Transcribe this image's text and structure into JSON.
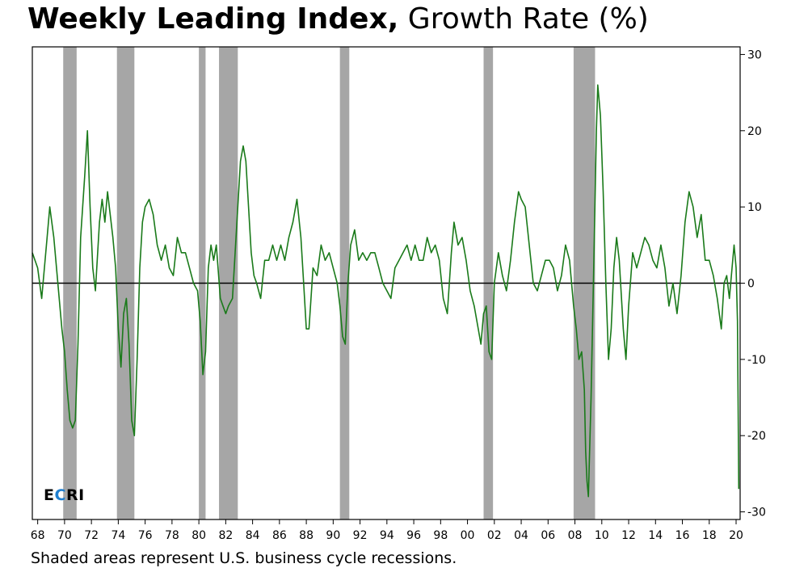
{
  "title": {
    "bold": "Weekly Leading Index,",
    "light": "Growth Rate (%)"
  },
  "footnote": "Shaded areas represent U.S. business cycle recessions.",
  "logo": {
    "e": "E",
    "c": "C",
    "ri": "RI"
  },
  "colors": {
    "line": "#1a7a1a",
    "recession": "#a6a6a6",
    "zero_line": "#000000",
    "logo_accent": "#1f7fd0"
  },
  "chart_data": {
    "type": "line",
    "title": "Weekly Leading Index, Growth Rate (%)",
    "ylim": [
      -31,
      31
    ],
    "xlim": [
      1967.6,
      2020.3
    ],
    "y_ticks": [
      30,
      20,
      10,
      0,
      -10,
      -20,
      -30
    ],
    "y_tick_labels": [
      "30",
      "20",
      "10",
      "0",
      "-10",
      "-20",
      "-30"
    ],
    "y_axis_side": "right",
    "x_ticks": [
      1968,
      1970,
      1972,
      1974,
      1976,
      1978,
      1980,
      1982,
      1984,
      1986,
      1988,
      1990,
      1992,
      1994,
      1996,
      1998,
      2000,
      2002,
      2004,
      2006,
      2008,
      2010,
      2012,
      2014,
      2016,
      2018,
      2020
    ],
    "x_tick_labels": [
      "68",
      "70",
      "72",
      "74",
      "76",
      "78",
      "80",
      "82",
      "84",
      "86",
      "88",
      "90",
      "92",
      "94",
      "96",
      "98",
      "00",
      "02",
      "04",
      "06",
      "08",
      "10",
      "12",
      "14",
      "16",
      "18",
      "20"
    ],
    "grid": false,
    "zero_line": true,
    "recessions": [
      [
        1969.9,
        1970.9
      ],
      [
        1973.9,
        1975.2
      ],
      [
        1980.0,
        1980.5
      ],
      [
        1981.5,
        1982.9
      ],
      [
        1990.5,
        1991.2
      ],
      [
        2001.2,
        2001.9
      ],
      [
        2007.9,
        2009.5
      ]
    ],
    "series": [
      {
        "points": [
          [
            1967.6,
            4
          ],
          [
            1968.0,
            2
          ],
          [
            1968.3,
            -2
          ],
          [
            1968.7,
            6
          ],
          [
            1968.9,
            10
          ],
          [
            1969.2,
            6
          ],
          [
            1969.5,
            0
          ],
          [
            1969.8,
            -6
          ],
          [
            1970.0,
            -9
          ],
          [
            1970.2,
            -14
          ],
          [
            1970.4,
            -18
          ],
          [
            1970.6,
            -19
          ],
          [
            1970.8,
            -18
          ],
          [
            1971.0,
            -8
          ],
          [
            1971.2,
            6
          ],
          [
            1971.5,
            14
          ],
          [
            1971.7,
            20
          ],
          [
            1971.9,
            10
          ],
          [
            1972.1,
            2
          ],
          [
            1972.3,
            -1
          ],
          [
            1972.6,
            8
          ],
          [
            1972.8,
            11
          ],
          [
            1973.0,
            8
          ],
          [
            1973.2,
            12
          ],
          [
            1973.4,
            9
          ],
          [
            1973.6,
            6
          ],
          [
            1973.8,
            2
          ],
          [
            1974.0,
            -6
          ],
          [
            1974.2,
            -11
          ],
          [
            1974.4,
            -4
          ],
          [
            1974.6,
            -2
          ],
          [
            1974.8,
            -8
          ],
          [
            1975.0,
            -18
          ],
          [
            1975.2,
            -20
          ],
          [
            1975.4,
            -10
          ],
          [
            1975.6,
            2
          ],
          [
            1975.8,
            8
          ],
          [
            1976.0,
            10
          ],
          [
            1976.3,
            11
          ],
          [
            1976.6,
            9
          ],
          [
            1976.9,
            5
          ],
          [
            1977.2,
            3
          ],
          [
            1977.5,
            5
          ],
          [
            1977.8,
            2
          ],
          [
            1978.1,
            1
          ],
          [
            1978.4,
            6
          ],
          [
            1978.7,
            4
          ],
          [
            1979.0,
            4
          ],
          [
            1979.3,
            2
          ],
          [
            1979.6,
            0
          ],
          [
            1979.9,
            -1
          ],
          [
            1980.1,
            -5
          ],
          [
            1980.3,
            -12
          ],
          [
            1980.5,
            -9
          ],
          [
            1980.7,
            2
          ],
          [
            1980.9,
            5
          ],
          [
            1981.1,
            3
          ],
          [
            1981.3,
            5
          ],
          [
            1981.6,
            -2
          ],
          [
            1981.8,
            -3
          ],
          [
            1982.0,
            -4
          ],
          [
            1982.2,
            -3
          ],
          [
            1982.5,
            -2
          ],
          [
            1982.7,
            4
          ],
          [
            1982.9,
            10
          ],
          [
            1983.1,
            16
          ],
          [
            1983.3,
            18
          ],
          [
            1983.5,
            16
          ],
          [
            1983.7,
            10
          ],
          [
            1983.9,
            4
          ],
          [
            1984.1,
            1
          ],
          [
            1984.3,
            0
          ],
          [
            1984.6,
            -2
          ],
          [
            1984.9,
            3
          ],
          [
            1985.2,
            3
          ],
          [
            1985.5,
            5
          ],
          [
            1985.8,
            3
          ],
          [
            1986.1,
            5
          ],
          [
            1986.4,
            3
          ],
          [
            1986.7,
            6
          ],
          [
            1987.0,
            8
          ],
          [
            1987.3,
            11
          ],
          [
            1987.6,
            6
          ],
          [
            1987.8,
            0
          ],
          [
            1988.0,
            -6
          ],
          [
            1988.2,
            -6
          ],
          [
            1988.5,
            2
          ],
          [
            1988.8,
            1
          ],
          [
            1989.1,
            5
          ],
          [
            1989.4,
            3
          ],
          [
            1989.7,
            4
          ],
          [
            1990.0,
            2
          ],
          [
            1990.3,
            0
          ],
          [
            1990.5,
            -3
          ],
          [
            1990.7,
            -7
          ],
          [
            1990.9,
            -8
          ],
          [
            1991.1,
            0
          ],
          [
            1991.3,
            5
          ],
          [
            1991.6,
            7
          ],
          [
            1991.9,
            3
          ],
          [
            1992.2,
            4
          ],
          [
            1992.5,
            3
          ],
          [
            1992.8,
            4
          ],
          [
            1993.1,
            4
          ],
          [
            1993.4,
            2
          ],
          [
            1993.7,
            0
          ],
          [
            1994.0,
            -1
          ],
          [
            1994.3,
            -2
          ],
          [
            1994.6,
            2
          ],
          [
            1994.9,
            3
          ],
          [
            1995.2,
            4
          ],
          [
            1995.5,
            5
          ],
          [
            1995.8,
            3
          ],
          [
            1996.1,
            5
          ],
          [
            1996.4,
            3
          ],
          [
            1996.7,
            3
          ],
          [
            1997.0,
            6
          ],
          [
            1997.3,
            4
          ],
          [
            1997.6,
            5
          ],
          [
            1997.9,
            3
          ],
          [
            1998.2,
            -2
          ],
          [
            1998.5,
            -4
          ],
          [
            1998.8,
            4
          ],
          [
            1999.0,
            8
          ],
          [
            1999.3,
            5
          ],
          [
            1999.6,
            6
          ],
          [
            1999.9,
            3
          ],
          [
            2000.2,
            -1
          ],
          [
            2000.5,
            -3
          ],
          [
            2000.8,
            -6
          ],
          [
            2001.0,
            -8
          ],
          [
            2001.2,
            -4
          ],
          [
            2001.4,
            -3
          ],
          [
            2001.6,
            -9
          ],
          [
            2001.8,
            -10
          ],
          [
            2002.0,
            0
          ],
          [
            2002.3,
            4
          ],
          [
            2002.6,
            1
          ],
          [
            2002.9,
            -1
          ],
          [
            2003.2,
            3
          ],
          [
            2003.5,
            8
          ],
          [
            2003.8,
            12
          ],
          [
            2004.0,
            11
          ],
          [
            2004.3,
            10
          ],
          [
            2004.6,
            5
          ],
          [
            2004.9,
            0
          ],
          [
            2005.2,
            -1
          ],
          [
            2005.5,
            1
          ],
          [
            2005.8,
            3
          ],
          [
            2006.1,
            3
          ],
          [
            2006.4,
            2
          ],
          [
            2006.7,
            -1
          ],
          [
            2007.0,
            1
          ],
          [
            2007.3,
            5
          ],
          [
            2007.6,
            3
          ],
          [
            2007.9,
            -3
          ],
          [
            2008.1,
            -6
          ],
          [
            2008.3,
            -10
          ],
          [
            2008.5,
            -9
          ],
          [
            2008.7,
            -14
          ],
          [
            2008.8,
            -22
          ],
          [
            2008.9,
            -26
          ],
          [
            2009.0,
            -28
          ],
          [
            2009.2,
            -15
          ],
          [
            2009.4,
            2
          ],
          [
            2009.6,
            20
          ],
          [
            2009.7,
            26
          ],
          [
            2009.9,
            22
          ],
          [
            2010.1,
            12
          ],
          [
            2010.3,
            0
          ],
          [
            2010.5,
            -10
          ],
          [
            2010.7,
            -6
          ],
          [
            2010.9,
            2
          ],
          [
            2011.1,
            6
          ],
          [
            2011.3,
            3
          ],
          [
            2011.6,
            -6
          ],
          [
            2011.8,
            -10
          ],
          [
            2012.0,
            -3
          ],
          [
            2012.3,
            4
          ],
          [
            2012.6,
            2
          ],
          [
            2012.9,
            4
          ],
          [
            2013.2,
            6
          ],
          [
            2013.5,
            5
          ],
          [
            2013.8,
            3
          ],
          [
            2014.1,
            2
          ],
          [
            2014.4,
            5
          ],
          [
            2014.7,
            2
          ],
          [
            2015.0,
            -3
          ],
          [
            2015.3,
            0
          ],
          [
            2015.6,
            -4
          ],
          [
            2015.9,
            1
          ],
          [
            2016.2,
            8
          ],
          [
            2016.5,
            12
          ],
          [
            2016.8,
            10
          ],
          [
            2017.1,
            6
          ],
          [
            2017.4,
            9
          ],
          [
            2017.7,
            3
          ],
          [
            2018.0,
            3
          ],
          [
            2018.3,
            1
          ],
          [
            2018.6,
            -2
          ],
          [
            2018.9,
            -6
          ],
          [
            2019.1,
            0
          ],
          [
            2019.3,
            1
          ],
          [
            2019.5,
            -2
          ],
          [
            2019.7,
            2
          ],
          [
            2019.85,
            5
          ],
          [
            2019.95,
            3
          ],
          [
            2020.0,
            2
          ],
          [
            2020.1,
            -5
          ],
          [
            2020.2,
            -27
          ]
        ]
      }
    ]
  }
}
